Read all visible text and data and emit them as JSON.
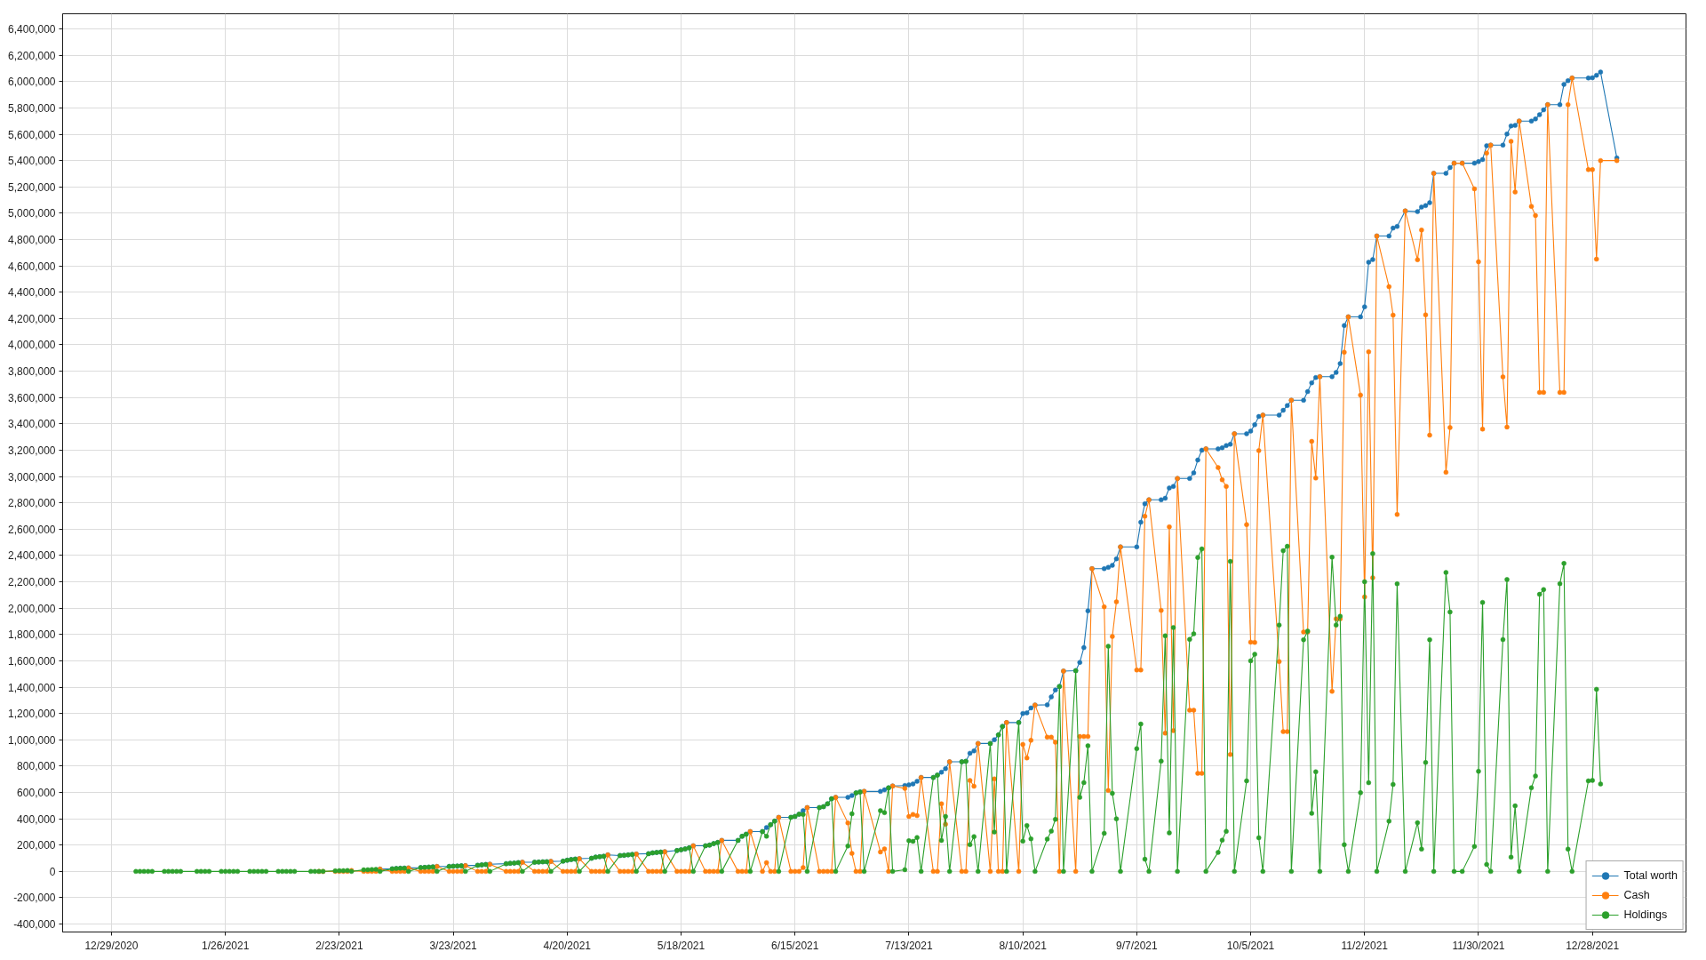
{
  "chart_data": {
    "type": "line",
    "marker": "circle",
    "grid": true,
    "legend": "bottom right",
    "xlim": [
      "2020-12-17",
      "2022-01-20"
    ],
    "ylim": [
      -460000,
      6515000
    ],
    "xticks": [
      {
        "value": "2020-12-29",
        "label": "12/29/2020"
      },
      {
        "value": "2021-01-26",
        "label": "1/26/2021"
      },
      {
        "value": "2021-02-23",
        "label": "2/23/2021"
      },
      {
        "value": "2021-03-23",
        "label": "3/23/2021"
      },
      {
        "value": "2021-04-20",
        "label": "4/20/2021"
      },
      {
        "value": "2021-05-18",
        "label": "5/18/2021"
      },
      {
        "value": "2021-06-15",
        "label": "6/15/2021"
      },
      {
        "value": "2021-07-13",
        "label": "7/13/2021"
      },
      {
        "value": "2021-08-10",
        "label": "8/10/2021"
      },
      {
        "value": "2021-09-07",
        "label": "9/7/2021"
      },
      {
        "value": "2021-10-05",
        "label": "10/5/2021"
      },
      {
        "value": "2021-11-02",
        "label": "11/2/2021"
      },
      {
        "value": "2021-11-30",
        "label": "11/30/2021"
      },
      {
        "value": "2021-12-28",
        "label": "12/28/2021"
      }
    ],
    "yticks": [
      {
        "value": -400000,
        "label": "-400,000"
      },
      {
        "value": -200000,
        "label": "-200,000"
      },
      {
        "value": 0,
        "label": "0"
      },
      {
        "value": 200000,
        "label": "200,000"
      },
      {
        "value": 400000,
        "label": "400,000"
      },
      {
        "value": 600000,
        "label": "600,000"
      },
      {
        "value": 800000,
        "label": "800,000"
      },
      {
        "value": 1000000,
        "label": "1,000,000"
      },
      {
        "value": 1200000,
        "label": "1,200,000"
      },
      {
        "value": 1400000,
        "label": "1,400,000"
      },
      {
        "value": 1600000,
        "label": "1,600,000"
      },
      {
        "value": 1800000,
        "label": "1,800,000"
      },
      {
        "value": 2000000,
        "label": "2,000,000"
      },
      {
        "value": 2200000,
        "label": "2,200,000"
      },
      {
        "value": 2400000,
        "label": "2,400,000"
      },
      {
        "value": 2600000,
        "label": "2,600,000"
      },
      {
        "value": 2800000,
        "label": "2,800,000"
      },
      {
        "value": 3000000,
        "label": "3,000,000"
      },
      {
        "value": 3200000,
        "label": "3,200,000"
      },
      {
        "value": 3400000,
        "label": "3,400,000"
      },
      {
        "value": 3600000,
        "label": "3,600,000"
      },
      {
        "value": 3800000,
        "label": "3,800,000"
      },
      {
        "value": 4000000,
        "label": "4,000,000"
      },
      {
        "value": 4200000,
        "label": "4,200,000"
      },
      {
        "value": 4400000,
        "label": "4,400,000"
      },
      {
        "value": 4600000,
        "label": "4,600,000"
      },
      {
        "value": 4800000,
        "label": "4,800,000"
      },
      {
        "value": 5000000,
        "label": "5,000,000"
      },
      {
        "value": 5200000,
        "label": "5,200,000"
      },
      {
        "value": 5400000,
        "label": "5,400,000"
      },
      {
        "value": 5600000,
        "label": "5,600,000"
      },
      {
        "value": 5800000,
        "label": "5,800,000"
      },
      {
        "value": 6000000,
        "label": "6,000,000"
      },
      {
        "value": 6200000,
        "label": "6,200,000"
      },
      {
        "value": 6400000,
        "label": "6,400,000"
      }
    ],
    "x": [
      "2021-01-04",
      "2021-01-05",
      "2021-01-06",
      "2021-01-07",
      "2021-01-08",
      "2021-01-11",
      "2021-01-12",
      "2021-01-13",
      "2021-01-14",
      "2021-01-15",
      "2021-01-19",
      "2021-01-20",
      "2021-01-21",
      "2021-01-22",
      "2021-01-25",
      "2021-01-26",
      "2021-01-27",
      "2021-01-28",
      "2021-01-29",
      "2021-02-01",
      "2021-02-02",
      "2021-02-03",
      "2021-02-04",
      "2021-02-05",
      "2021-02-08",
      "2021-02-09",
      "2021-02-10",
      "2021-02-11",
      "2021-02-12",
      "2021-02-16",
      "2021-02-17",
      "2021-02-18",
      "2021-02-19",
      "2021-02-22",
      "2021-02-23",
      "2021-02-24",
      "2021-02-25",
      "2021-02-26",
      "2021-03-01",
      "2021-03-02",
      "2021-03-03",
      "2021-03-04",
      "2021-03-05",
      "2021-03-08",
      "2021-03-09",
      "2021-03-10",
      "2021-03-11",
      "2021-03-12",
      "2021-03-15",
      "2021-03-16",
      "2021-03-17",
      "2021-03-18",
      "2021-03-19",
      "2021-03-22",
      "2021-03-23",
      "2021-03-24",
      "2021-03-25",
      "2021-03-26",
      "2021-03-29",
      "2021-03-30",
      "2021-03-31",
      "2021-04-01",
      "2021-04-05",
      "2021-04-06",
      "2021-04-07",
      "2021-04-08",
      "2021-04-09",
      "2021-04-12",
      "2021-04-13",
      "2021-04-14",
      "2021-04-15",
      "2021-04-16",
      "2021-04-19",
      "2021-04-20",
      "2021-04-21",
      "2021-04-22",
      "2021-04-23",
      "2021-04-26",
      "2021-04-27",
      "2021-04-28",
      "2021-04-29",
      "2021-04-30",
      "2021-05-03",
      "2021-05-04",
      "2021-05-05",
      "2021-05-06",
      "2021-05-07",
      "2021-05-10",
      "2021-05-11",
      "2021-05-12",
      "2021-05-13",
      "2021-05-14",
      "2021-05-17",
      "2021-05-18",
      "2021-05-19",
      "2021-05-20",
      "2021-05-21",
      "2021-05-24",
      "2021-05-25",
      "2021-05-26",
      "2021-05-27",
      "2021-05-28",
      "2021-06-01",
      "2021-06-02",
      "2021-06-03",
      "2021-06-04",
      "2021-06-07",
      "2021-06-08",
      "2021-06-09",
      "2021-06-10",
      "2021-06-11",
      "2021-06-14",
      "2021-06-15",
      "2021-06-16",
      "2021-06-17",
      "2021-06-18",
      "2021-06-21",
      "2021-06-22",
      "2021-06-23",
      "2021-06-24",
      "2021-06-25",
      "2021-06-28",
      "2021-06-29",
      "2021-06-30",
      "2021-07-01",
      "2021-07-02",
      "2021-07-06",
      "2021-07-07",
      "2021-07-08",
      "2021-07-09",
      "2021-07-12",
      "2021-07-13",
      "2021-07-14",
      "2021-07-15",
      "2021-07-16",
      "2021-07-19",
      "2021-07-20",
      "2021-07-21",
      "2021-07-22",
      "2021-07-23",
      "2021-07-26",
      "2021-07-27",
      "2021-07-28",
      "2021-07-29",
      "2021-07-30",
      "2021-08-02",
      "2021-08-03",
      "2021-08-04",
      "2021-08-05",
      "2021-08-06",
      "2021-08-09",
      "2021-08-10",
      "2021-08-11",
      "2021-08-12",
      "2021-08-13",
      "2021-08-16",
      "2021-08-17",
      "2021-08-18",
      "2021-08-19",
      "2021-08-20",
      "2021-08-23",
      "2021-08-24",
      "2021-08-25",
      "2021-08-26",
      "2021-08-27",
      "2021-08-30",
      "2021-08-31",
      "2021-09-01",
      "2021-09-02",
      "2021-09-03",
      "2021-09-07",
      "2021-09-08",
      "2021-09-09",
      "2021-09-10",
      "2021-09-13",
      "2021-09-14",
      "2021-09-15",
      "2021-09-16",
      "2021-09-17",
      "2021-09-20",
      "2021-09-21",
      "2021-09-22",
      "2021-09-23",
      "2021-09-24",
      "2021-09-27",
      "2021-09-28",
      "2021-09-29",
      "2021-09-30",
      "2021-10-01",
      "2021-10-04",
      "2021-10-05",
      "2021-10-06",
      "2021-10-07",
      "2021-10-08",
      "2021-10-12",
      "2021-10-13",
      "2021-10-14",
      "2021-10-15",
      "2021-10-18",
      "2021-10-19",
      "2021-10-20",
      "2021-10-21",
      "2021-10-22",
      "2021-10-25",
      "2021-10-26",
      "2021-10-27",
      "2021-10-28",
      "2021-10-29",
      "2021-11-01",
      "2021-11-02",
      "2021-11-03",
      "2021-11-04",
      "2021-11-05",
      "2021-11-08",
      "2021-11-09",
      "2021-11-10",
      "2021-11-12",
      "2021-11-15",
      "2021-11-16",
      "2021-11-17",
      "2021-11-18",
      "2021-11-19",
      "2021-11-22",
      "2021-11-23",
      "2021-11-24",
      "2021-11-26",
      "2021-11-29",
      "2021-11-30",
      "2021-12-01",
      "2021-12-02",
      "2021-12-03",
      "2021-12-06",
      "2021-12-07",
      "2021-12-08",
      "2021-12-09",
      "2021-12-10",
      "2021-12-13",
      "2021-12-14",
      "2021-12-15",
      "2021-12-16",
      "2021-12-17",
      "2021-12-20",
      "2021-12-21",
      "2021-12-22",
      "2021-12-23",
      "2021-12-27",
      "2021-12-28",
      "2021-12-29",
      "2021-12-30",
      "2022-01-03"
    ],
    "series": [
      {
        "name": "Total worth",
        "color": "#1f77b4",
        "values": [
          null,
          null,
          null,
          null,
          null,
          null,
          null,
          null,
          null,
          null,
          null,
          null,
          null,
          null,
          null,
          null,
          null,
          null,
          null,
          null,
          null,
          null,
          null,
          null,
          null,
          null,
          null,
          null,
          null,
          null,
          null,
          null,
          null,
          null,
          null,
          null,
          null,
          null,
          null,
          null,
          null,
          null,
          18000,
          20000,
          22000,
          24000,
          25000,
          27000,
          29000,
          31000,
          33000,
          35000,
          38000,
          38000,
          40000,
          41000,
          43000,
          44000,
          47000,
          50000,
          53000,
          55000,
          59000,
          62000,
          64000,
          67000,
          70000,
          70000,
          71000,
          73000,
          74000,
          76000,
          78000,
          85000,
          91000,
          94000,
          97000,
          100000,
          109000,
          112000,
          115000,
          126000,
          121000,
          123000,
          126000,
          129000,
          132000,
          135000,
          141000,
          144000,
          147000,
          150000,
          159000,
          165000,
          171000,
          179000,
          195000,
          195000,
          200000,
          211000,
          220000,
          236000,
          236000,
          267000,
          283000,
          303000,
          303000,
          334000,
          355000,
          382000,
          411000,
          411000,
          418000,
          435000,
          462000,
          485000,
          485000,
          492000,
          514000,
          552000,
          563000,
          563000,
          577000,
          597000,
          604000,
          608000,
          608000,
          620000,
          635000,
          649000,
          653000,
          658000,
          665000,
          685000,
          714000,
          714000,
          732000,
          754000,
          781000,
          833000,
          833000,
          837000,
          898000,
          916000,
          972000,
          972000,
          1001000,
          1037000,
          1102000,
          1131000,
          1131000,
          1200000,
          1205000,
          1242000,
          1264000,
          1266000,
          1326000,
          1378000,
          1405000,
          1522000,
          1525000,
          1588000,
          1700000,
          1980000,
          2300000,
          2300000,
          2310000,
          2325000,
          2375000,
          2465000,
          2465000,
          2653000,
          2793000,
          2823000,
          2823000,
          2835000,
          2913000,
          2925000,
          2985000,
          2985000,
          3028000,
          3125000,
          3200000,
          3210000,
          3210000,
          3218000,
          3235000,
          3245000,
          3325000,
          3325000,
          3345000,
          3393000,
          3456000,
          3466000,
          3466000,
          3503000,
          3539000,
          3579000,
          3579000,
          3645000,
          3712000,
          3752000,
          3758000,
          3758000,
          3791000,
          3858000,
          4147000,
          4213000,
          4213000,
          4289000,
          4628000,
          4648000,
          4827000,
          4827000,
          4887000,
          4900000,
          5017000,
          5012000,
          5047000,
          5058000,
          5080000,
          5303000,
          5303000,
          5347000,
          5380000,
          5380000,
          5380000,
          5392000,
          5408000,
          5513000,
          5517000,
          5517000,
          5602000,
          5663000,
          5667000,
          5700000,
          5700000,
          5716000,
          5748000,
          5785000,
          5825000,
          5825000,
          5979000,
          6007000,
          6027000,
          6027000,
          6029000,
          6048000,
          6072000,
          5420000
        ]
      },
      {
        "name": "Cash",
        "color": "#ff7f0e",
        "values": [
          null,
          null,
          null,
          null,
          null,
          null,
          null,
          null,
          null,
          null,
          null,
          null,
          null,
          null,
          null,
          null,
          null,
          null,
          null,
          null,
          null,
          null,
          null,
          null,
          null,
          null,
          null,
          null,
          null,
          null,
          null,
          0,
          0,
          0,
          0,
          0,
          0,
          7000,
          0,
          0,
          0,
          0,
          18000,
          0,
          0,
          0,
          0,
          27000,
          0,
          0,
          0,
          0,
          38000,
          0,
          0,
          0,
          0,
          44000,
          0,
          0,
          0,
          55000,
          0,
          0,
          0,
          0,
          70000,
          0,
          0,
          0,
          0,
          76000,
          0,
          0,
          0,
          0,
          97000,
          0,
          0,
          0,
          0,
          126000,
          0,
          0,
          0,
          0,
          132000,
          0,
          0,
          0,
          0,
          150000,
          0,
          0,
          0,
          0,
          195000,
          0,
          0,
          0,
          0,
          236000,
          0,
          0,
          0,
          303000,
          0,
          67000,
          0,
          0,
          411000,
          0,
          0,
          0,
          29000,
          485000,
          0,
          0,
          0,
          0,
          563000,
          368000,
          137000,
          0,
          0,
          608000,
          148000,
          171000,
          0,
          649000,
          631000,
          418000,
          433000,
          424000,
          714000,
          0,
          0,
          514000,
          359000,
          833000,
          0,
          0,
          691000,
          647000,
          972000,
          0,
          703000,
          0,
          0,
          1131000,
          0,
          965000,
          862000,
          996000,
          1264000,
          1020000,
          1020000,
          982000,
          0,
          1522000,
          0,
          1025000,
          1025000,
          1025000,
          2300000,
          2010000,
          615000,
          1785000,
          2048000,
          2465000,
          1530000,
          1530000,
          2698000,
          2823000,
          1983000,
          1050000,
          2618000,
          1070000,
          2985000,
          1225000,
          1225000,
          745000,
          745000,
          3210000,
          3068000,
          2975000,
          2925000,
          888000,
          3325000,
          2635000,
          1742000,
          1740000,
          3197000,
          3466000,
          1594000,
          1062000,
          1062000,
          3579000,
          1819000,
          1819000,
          3267000,
          2988000,
          3758000,
          1368000,
          1919000,
          1919000,
          3944000,
          4213000,
          3619000,
          2085000,
          3947000,
          2231000,
          4827000,
          4442000,
          4226000,
          2712000,
          5017000,
          4647000,
          4872000,
          4228000,
          3314000,
          5303000,
          3032000,
          3372000,
          5380000,
          5380000,
          5185000,
          4631000,
          3360000,
          5457000,
          5517000,
          3757000,
          3376000,
          5546000,
          5161000,
          5700000,
          5052000,
          4983000,
          3639000,
          3639000,
          5825000,
          3639000,
          3639000,
          5825000,
          6027000,
          5331000,
          5331000,
          4651000,
          5400000,
          5400000
        ]
      },
      {
        "name": "Holdings",
        "color": "#2ca02c",
        "values": [
          0,
          0,
          0,
          0,
          0,
          0,
          0,
          0,
          0,
          0,
          0,
          0,
          0,
          0,
          0,
          0,
          0,
          0,
          0,
          0,
          0,
          0,
          0,
          0,
          0,
          0,
          0,
          0,
          0,
          0,
          0,
          0,
          0,
          5000,
          6000,
          6000,
          7000,
          0,
          12000,
          13000,
          15000,
          16000,
          0,
          20000,
          22000,
          24000,
          25000,
          0,
          29000,
          31000,
          33000,
          35000,
          0,
          38000,
          40000,
          41000,
          43000,
          0,
          47000,
          50000,
          53000,
          0,
          59000,
          62000,
          64000,
          67000,
          0,
          70000,
          71000,
          73000,
          74000,
          0,
          78000,
          85000,
          91000,
          94000,
          0,
          100000,
          109000,
          112000,
          115000,
          0,
          121000,
          123000,
          126000,
          129000,
          0,
          135000,
          141000,
          144000,
          147000,
          0,
          159000,
          165000,
          171000,
          179000,
          0,
          195000,
          200000,
          211000,
          220000,
          0,
          236000,
          267000,
          283000,
          0,
          303000,
          267000,
          355000,
          382000,
          0,
          411000,
          418000,
          435000,
          433000,
          0,
          485000,
          492000,
          514000,
          552000,
          0,
          193000,
          438000,
          597000,
          604000,
          0,
          462000,
          447000,
          635000,
          0,
          13000,
          233000,
          229000,
          258000,
          0,
          714000,
          732000,
          236000,
          418000,
          0,
          833000,
          837000,
          204000,
          265000,
          0,
          972000,
          299000,
          1037000,
          1102000,
          0,
          1131000,
          230000,
          349000,
          248000,
          0,
          246000,
          306000,
          396000,
          1405000,
          0,
          1525000,
          563000,
          675000,
          955000,
          0,
          290000,
          1710000,
          593000,
          400000,
          0,
          933000,
          1120000,
          93000,
          0,
          838000,
          1790000,
          293000,
          1853000,
          0,
          1763000,
          1805000,
          2385000,
          2450000,
          0,
          145000,
          238000,
          305000,
          2355000,
          0,
          688000,
          1600000,
          1650000,
          256000,
          0,
          1872000,
          2437000,
          2470000,
          0,
          1760000,
          1826000,
          442000,
          757000,
          0,
          2387000,
          1872000,
          1939000,
          203000,
          0,
          598000,
          2201000,
          674000,
          2414000,
          0,
          382000,
          661000,
          2185000,
          0,
          370000,
          170000,
          828000,
          1760000,
          0,
          2271000,
          1971000,
          0,
          0,
          190000,
          761000,
          2044000,
          53000,
          0,
          1761000,
          2218000,
          109000,
          498000,
          0,
          636000,
          725000,
          2105000,
          2141000,
          0,
          2186000,
          2340000,
          170000,
          0,
          688000,
          692000,
          1384000,
          664000,
          null
        ]
      }
    ]
  }
}
